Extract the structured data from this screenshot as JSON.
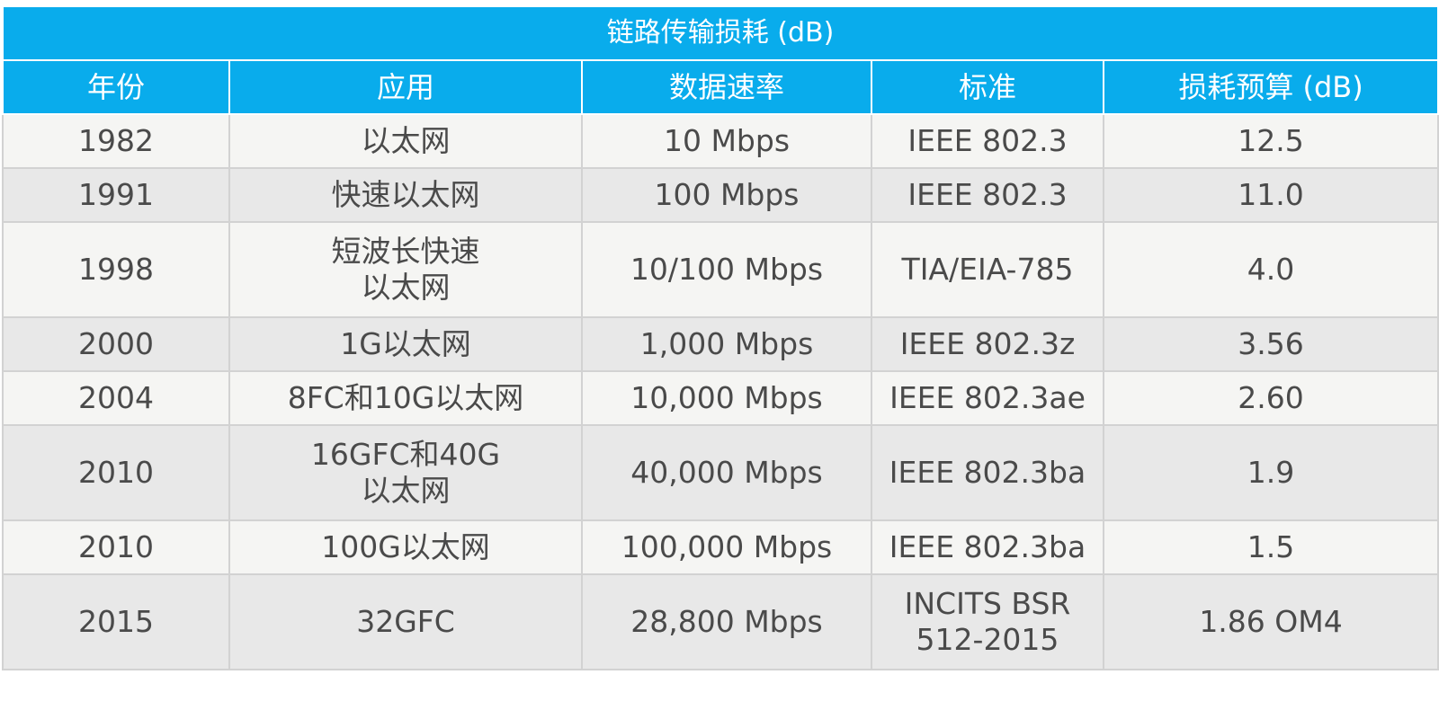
{
  "table": {
    "title": "链路传输损耗 (dB)",
    "headers": [
      "年份",
      "应用",
      "数据速率",
      "标准",
      "损耗预算 (dB)"
    ],
    "rows": [
      [
        "1982",
        "以太网",
        "10 Mbps",
        "IEEE 802.3",
        "12.5"
      ],
      [
        "1991",
        "快速以太网",
        "100 Mbps",
        "IEEE 802.3",
        "11.0"
      ],
      [
        "1998",
        "短波长快速\n以太网",
        "10/100 Mbps",
        "TIA/EIA-785",
        "4.0"
      ],
      [
        "2000",
        "1G以太网",
        "1,000 Mbps",
        "IEEE 802.3z",
        "3.56"
      ],
      [
        "2004",
        "8FC和10G以太网",
        "10,000 Mbps",
        "IEEE 802.3ae",
        "2.60"
      ],
      [
        "2010",
        "16GFC和40G\n以太网",
        "40,000 Mbps",
        "IEEE 802.3ba",
        "1.9"
      ],
      [
        "2010",
        "100G以太网",
        "100,000 Mbps",
        "IEEE 802.3ba",
        "1.5"
      ],
      [
        "2015",
        "32GFC",
        "28,800 Mbps",
        "INCITS BSR\n512-2015",
        "1.86 OM4"
      ]
    ]
  },
  "colors": {
    "header_bg": "#09acec",
    "header_text": "#ffffff",
    "row_light": "#f5f5f3",
    "row_dark": "#e8e8e8",
    "cell_text": "#4a4a4a"
  }
}
